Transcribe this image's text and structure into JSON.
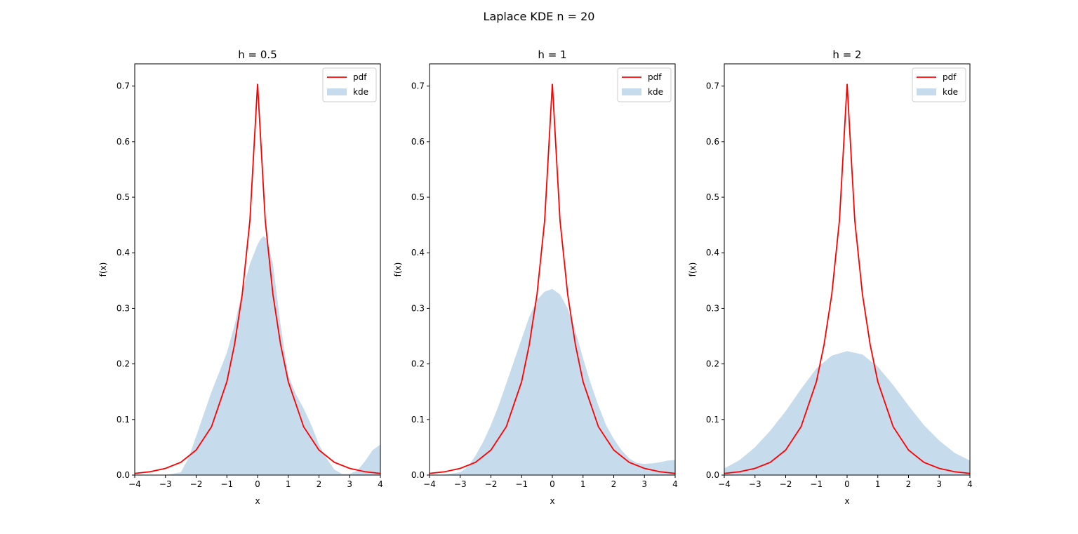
{
  "figure": {
    "title": "Laplace KDE n = 20"
  },
  "chart_data": [
    {
      "type": "line",
      "title": "h = 0.5",
      "xlabel": "x",
      "ylabel": "f(x)",
      "xlim": [
        -4,
        4
      ],
      "ylim": [
        0,
        0.74
      ],
      "xticks": [
        "−4",
        "−3",
        "−2",
        "−1",
        "0",
        "1",
        "2",
        "3",
        "4"
      ],
      "yticks": [
        "0.0",
        "0.1",
        "0.2",
        "0.3",
        "0.4",
        "0.5",
        "0.6",
        "0.7"
      ],
      "grid": false,
      "legend": {
        "position": "top-right",
        "entries": [
          "pdf",
          "kde"
        ]
      },
      "colors": {
        "pdf": "#ff0000",
        "kde": "#c6dbec"
      },
      "series": [
        {
          "name": "pdf",
          "style": "line",
          "x": [
            -4,
            -3.5,
            -3,
            -2.5,
            -2,
            -1.5,
            -1,
            -0.75,
            -0.5,
            -0.25,
            0,
            0.25,
            0.5,
            0.75,
            1,
            1.5,
            2,
            2.5,
            3,
            3.5,
            4
          ],
          "y": [
            0.003,
            0.006,
            0.012,
            0.023,
            0.045,
            0.087,
            0.168,
            0.235,
            0.325,
            0.458,
            0.704,
            0.458,
            0.325,
            0.235,
            0.168,
            0.087,
            0.045,
            0.023,
            0.012,
            0.006,
            0.003
          ]
        },
        {
          "name": "kde",
          "style": "area",
          "x": [
            -4,
            -3,
            -2.5,
            -2.25,
            -2,
            -1.75,
            -1.5,
            -1.25,
            -1,
            -0.75,
            -0.5,
            -0.25,
            0,
            0.1,
            0.2,
            0.3,
            0.5,
            0.75,
            1,
            1.25,
            1.5,
            1.75,
            2,
            2.25,
            2.5,
            2.75,
            3,
            3.25,
            3.5,
            3.75,
            4
          ],
          "y": [
            0,
            0,
            0.005,
            0.03,
            0.07,
            0.11,
            0.15,
            0.185,
            0.22,
            0.27,
            0.33,
            0.38,
            0.415,
            0.425,
            0.43,
            0.425,
            0.38,
            0.27,
            0.18,
            0.145,
            0.12,
            0.09,
            0.055,
            0.03,
            0.01,
            0.002,
            0.002,
            0.008,
            0.025,
            0.045,
            0.055
          ]
        }
      ]
    },
    {
      "type": "line",
      "title": "h = 1",
      "xlabel": "x",
      "ylabel": "f(x)",
      "xlim": [
        -4,
        4
      ],
      "ylim": [
        0,
        0.74
      ],
      "xticks": [
        "−4",
        "−3",
        "−2",
        "−1",
        "0",
        "1",
        "2",
        "3",
        "4"
      ],
      "yticks": [
        "0.0",
        "0.1",
        "0.2",
        "0.3",
        "0.4",
        "0.5",
        "0.6",
        "0.7"
      ],
      "grid": false,
      "legend": {
        "position": "top-right",
        "entries": [
          "pdf",
          "kde"
        ]
      },
      "colors": {
        "pdf": "#ff0000",
        "kde": "#c6dbec"
      },
      "series": [
        {
          "name": "pdf",
          "style": "line",
          "x": [
            -4,
            -3.5,
            -3,
            -2.5,
            -2,
            -1.5,
            -1,
            -0.75,
            -0.5,
            -0.25,
            0,
            0.25,
            0.5,
            0.75,
            1,
            1.5,
            2,
            2.5,
            3,
            3.5,
            4
          ],
          "y": [
            0.003,
            0.006,
            0.012,
            0.023,
            0.045,
            0.087,
            0.168,
            0.235,
            0.325,
            0.458,
            0.704,
            0.458,
            0.325,
            0.235,
            0.168,
            0.087,
            0.045,
            0.023,
            0.012,
            0.006,
            0.003
          ]
        },
        {
          "name": "kde",
          "style": "area",
          "x": [
            -4,
            -3.5,
            -3,
            -2.75,
            -2.5,
            -2.25,
            -2,
            -1.75,
            -1.5,
            -1.25,
            -1,
            -0.75,
            -0.5,
            -0.25,
            0,
            0.25,
            0.5,
            0.75,
            1,
            1.25,
            1.5,
            1.75,
            2,
            2.25,
            2.5,
            2.75,
            3,
            3.25,
            3.5,
            3.75,
            4
          ],
          "y": [
            0,
            0.001,
            0.005,
            0.015,
            0.035,
            0.06,
            0.09,
            0.125,
            0.165,
            0.205,
            0.245,
            0.285,
            0.315,
            0.33,
            0.335,
            0.325,
            0.3,
            0.26,
            0.21,
            0.165,
            0.125,
            0.09,
            0.065,
            0.045,
            0.03,
            0.022,
            0.02,
            0.021,
            0.023,
            0.026,
            0.027
          ]
        }
      ]
    },
    {
      "type": "line",
      "title": "h = 2",
      "xlabel": "x",
      "ylabel": "f(x)",
      "xlim": [
        -4,
        4
      ],
      "ylim": [
        0,
        0.74
      ],
      "xticks": [
        "−4",
        "−3",
        "−2",
        "−1",
        "0",
        "1",
        "2",
        "3",
        "4"
      ],
      "yticks": [
        "0.0",
        "0.1",
        "0.2",
        "0.3",
        "0.4",
        "0.5",
        "0.6",
        "0.7"
      ],
      "grid": false,
      "legend": {
        "position": "top-right",
        "entries": [
          "pdf",
          "kde"
        ]
      },
      "colors": {
        "pdf": "#ff0000",
        "kde": "#c6dbec"
      },
      "series": [
        {
          "name": "pdf",
          "style": "line",
          "x": [
            -4,
            -3.5,
            -3,
            -2.5,
            -2,
            -1.5,
            -1,
            -0.75,
            -0.5,
            -0.25,
            0,
            0.25,
            0.5,
            0.75,
            1,
            1.5,
            2,
            2.5,
            3,
            3.5,
            4
          ],
          "y": [
            0.003,
            0.006,
            0.012,
            0.023,
            0.045,
            0.087,
            0.168,
            0.235,
            0.325,
            0.458,
            0.704,
            0.458,
            0.325,
            0.235,
            0.168,
            0.087,
            0.045,
            0.023,
            0.012,
            0.006,
            0.003
          ]
        },
        {
          "name": "kde",
          "style": "area",
          "x": [
            -4,
            -3.5,
            -3,
            -2.5,
            -2,
            -1.5,
            -1,
            -0.5,
            0,
            0.5,
            1,
            1.5,
            2,
            2.5,
            3,
            3.5,
            4
          ],
          "y": [
            0.012,
            0.027,
            0.05,
            0.08,
            0.115,
            0.155,
            0.192,
            0.215,
            0.223,
            0.217,
            0.195,
            0.162,
            0.125,
            0.09,
            0.062,
            0.04,
            0.026
          ]
        }
      ]
    }
  ]
}
